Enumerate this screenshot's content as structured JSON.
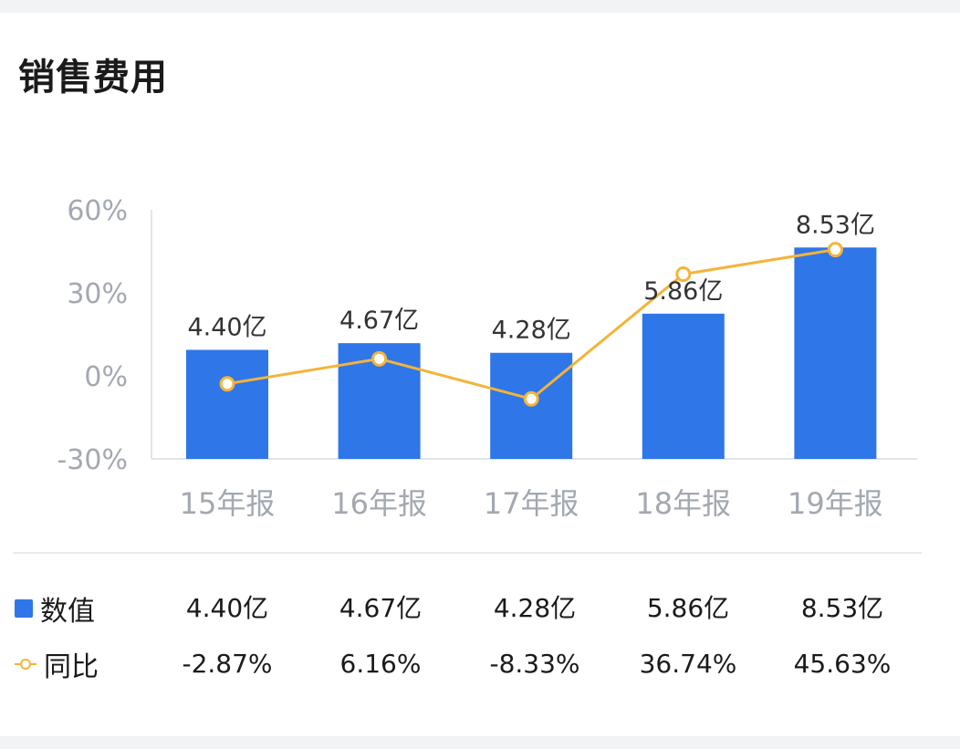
{
  "title": "销售费用",
  "colors": {
    "bar": "#2f76e8",
    "line": "#f3b43a",
    "axis_text": "#a3a8b1",
    "gridline": "#e2e5ea"
  },
  "chart_data": {
    "type": "bar",
    "categories": [
      "15年报",
      "16年报",
      "17年报",
      "18年报",
      "19年报"
    ],
    "series": [
      {
        "name": "数值",
        "type": "bar",
        "values": [
          4.4,
          4.67,
          4.28,
          5.86,
          8.53
        ],
        "labels": [
          "4.40亿",
          "4.67亿",
          "4.28亿",
          "5.86亿",
          "8.53亿"
        ]
      },
      {
        "name": "同比",
        "type": "line",
        "values": [
          -2.87,
          6.16,
          -8.33,
          36.74,
          45.63
        ],
        "labels": [
          "-2.87%",
          "6.16%",
          "-8.33%",
          "36.74%",
          "45.63%"
        ]
      }
    ],
    "y_ticks": [
      "60%",
      "30%",
      "0%",
      "-30%"
    ],
    "ylim_pct": [
      -30,
      60
    ],
    "bar_ylim": [
      0,
      10
    ],
    "grid": false,
    "legend_position": "bottom-left table"
  },
  "table": {
    "rows": [
      {
        "legend_label": "数值",
        "values": [
          "4.40亿",
          "4.67亿",
          "4.28亿",
          "5.86亿",
          "8.53亿"
        ]
      },
      {
        "legend_label": "同比",
        "values": [
          "-2.87%",
          "6.16%",
          "-8.33%",
          "36.74%",
          "45.63%"
        ]
      }
    ]
  }
}
